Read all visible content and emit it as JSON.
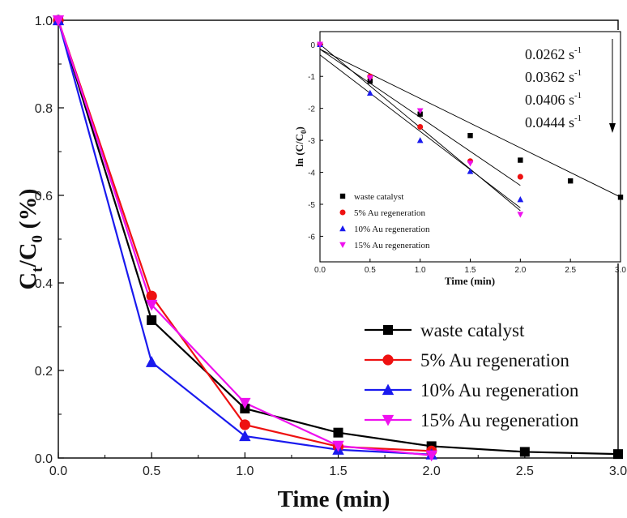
{
  "chart_data": [
    {
      "type": "line",
      "xlabel": "Time (min)",
      "ylabel": {
        "main": "C",
        "sub1": "t",
        "mid": "/C",
        "sub2": "0",
        "tail": " (%)"
      },
      "xlim": [
        0.0,
        3.0
      ],
      "ylim": [
        0.0,
        1.0
      ],
      "xticks": [
        "0.0",
        "0.5",
        "1.0",
        "1.5",
        "2.0",
        "2.5",
        "3.0"
      ],
      "yticks": [
        "0.0",
        "0.2",
        "0.4",
        "0.6",
        "0.8",
        "1.0"
      ],
      "legend_position": "bottom-right",
      "series": [
        {
          "name": "waste catalyst",
          "color": "#000000",
          "marker": "square",
          "x": [
            0.0,
            0.5,
            1.0,
            1.5,
            2.0,
            2.5,
            3.0
          ],
          "y": [
            1.0,
            0.315,
            0.113,
            0.058,
            0.027,
            0.014,
            0.009
          ]
        },
        {
          "name": "5% Au regeneration",
          "color": "#ee1111",
          "marker": "circle",
          "x": [
            0.0,
            0.5,
            1.0,
            1.5,
            2.0
          ],
          "y": [
            1.0,
            0.37,
            0.076,
            0.026,
            0.016
          ]
        },
        {
          "name": "10% Au regeneration",
          "color": "#1a1aee",
          "marker": "triangle-up",
          "x": [
            0.0,
            0.5,
            1.0,
            1.5,
            2.0
          ],
          "y": [
            1.0,
            0.219,
            0.05,
            0.019,
            0.008
          ]
        },
        {
          "name": "15% Au regeneration",
          "color": "#ee11ee",
          "marker": "triangle-down",
          "x": [
            0.0,
            0.5,
            1.0,
            1.5,
            2.0
          ],
          "y": [
            1.0,
            0.35,
            0.126,
            0.028,
            0.006
          ]
        }
      ]
    },
    {
      "type": "scatter",
      "inset": true,
      "xlabel": "Time (min)",
      "ylabel": {
        "main": "ln (C/C",
        "sub": "0",
        "tail": ")"
      },
      "xlim": [
        0.0,
        3.0
      ],
      "ylim": [
        -6.8,
        0.4
      ],
      "xticks": [
        "0.0",
        "0.5",
        "1.0",
        "1.5",
        "2.0",
        "2.5",
        "3.0"
      ],
      "yticks": [
        "0",
        "-1",
        "-2",
        "-3",
        "-4",
        "-5",
        "-6"
      ],
      "legend_position": "bottom-left",
      "rate_constants": {
        "unit": "s",
        "exponent": "-1",
        "values": [
          "0.0262",
          "0.0362",
          "0.0406",
          "0.0444"
        ]
      },
      "series": [
        {
          "name": "waste catalyst",
          "color": "#000000",
          "marker": "square",
          "x": [
            0.0,
            0.5,
            1.0,
            1.5,
            2.0,
            2.5,
            3.0
          ],
          "y": [
            0.0,
            -1.15,
            -2.18,
            -2.85,
            -3.62,
            -4.27,
            -4.78
          ],
          "fit": [
            -0.15,
            -1.542
          ]
        },
        {
          "name": "5% Au regeneration",
          "color": "#ee1111",
          "marker": "circle",
          "x": [
            0.0,
            0.5,
            1.0,
            1.5,
            2.0
          ],
          "y": [
            0.0,
            -1.0,
            -2.58,
            -3.65,
            -4.14
          ],
          "fit": [
            -0.15,
            -2.13
          ]
        },
        {
          "name": "10% Au regeneration",
          "color": "#1a1aee",
          "marker": "triangle-up",
          "x": [
            0.0,
            0.5,
            1.0,
            1.5,
            2.0
          ],
          "y": [
            0.0,
            -1.52,
            -3.0,
            -3.97,
            -4.85
          ],
          "fit": [
            -0.33,
            -2.39
          ]
        },
        {
          "name": "15% Au regeneration",
          "color": "#ee11ee",
          "marker": "triangle-down",
          "x": [
            0.0,
            0.5,
            1.0,
            1.5,
            2.0
          ],
          "y": [
            0.0,
            -1.05,
            -2.08,
            -3.72,
            -5.32
          ],
          "fit": [
            0.0,
            -2.6
          ]
        }
      ]
    }
  ]
}
